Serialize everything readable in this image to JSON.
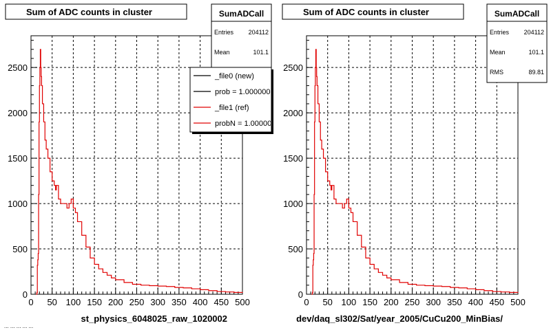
{
  "colors": {
    "ref": "#e00000",
    "new": "#000000",
    "grid": "#000000",
    "background": "#ffffff"
  },
  "footer_text": "... ... ... ... ...",
  "chart_data": [
    {
      "type": "line",
      "title": "Sum of ADC counts in cluster",
      "xlabel": "st_physics_6048025_raw_1020002",
      "ylabel": "",
      "xlim": [
        0,
        500
      ],
      "ylim": [
        0,
        2850
      ],
      "xticks": [
        "0",
        "50",
        "100",
        "150",
        "200",
        "250",
        "300",
        "350",
        "400",
        "450",
        "500"
      ],
      "yticks": [
        "0",
        "500",
        "1000",
        "1500",
        "2000",
        "2500"
      ],
      "grid": true,
      "stats": {
        "name": "SumADCall",
        "entries_label": "Entries",
        "entries": "204112",
        "mean_label": "Mean",
        "mean": "101.1"
      },
      "legend": {
        "placement": "top-right",
        "entries": [
          {
            "label": "_file0 (new)",
            "color": "#000000"
          },
          {
            "label": "prob = 1.000000",
            "color": "#000000"
          },
          {
            "label": "_file1 (ref)",
            "color": "#e00000"
          },
          {
            "label": "probN = 1.000000",
            "color": "#e00000"
          }
        ]
      },
      "series": [
        {
          "color": "#e00000",
          "x": [
            12,
            14,
            15,
            16,
            17,
            18,
            19,
            20,
            21,
            22,
            23,
            24,
            25,
            27,
            30,
            33,
            36,
            40,
            45,
            50,
            55,
            58,
            60,
            65,
            70,
            75,
            80,
            85,
            90,
            95,
            100,
            105,
            110,
            120,
            130,
            140,
            150,
            160,
            170,
            180,
            190,
            200,
            220,
            240,
            260,
            280,
            300,
            320,
            340,
            360,
            380,
            400,
            420,
            440,
            460,
            480,
            500
          ],
          "y": [
            0,
            20,
            320,
            380,
            450,
            1100,
            1900,
            2300,
            2500,
            2700,
            2500,
            2400,
            2300,
            2100,
            1900,
            1700,
            1600,
            1500,
            1350,
            1250,
            1200,
            1150,
            1200,
            1050,
            1000,
            1000,
            1000,
            950,
            1000,
            1050,
            950,
            900,
            800,
            650,
            520,
            400,
            330,
            280,
            240,
            210,
            180,
            160,
            130,
            110,
            100,
            95,
            90,
            85,
            75,
            70,
            60,
            50,
            40,
            30,
            25,
            20,
            15
          ]
        }
      ]
    },
    {
      "type": "line",
      "title": "Sum of ADC counts in cluster",
      "xlabel": "dev/daq_sl302/Sat/year_2005/CuCu200_MinBias/",
      "ylabel": "",
      "xlim": [
        0,
        500
      ],
      "ylim": [
        0,
        2850
      ],
      "xticks": [
        "0",
        "50",
        "100",
        "150",
        "200",
        "250",
        "300",
        "350",
        "400",
        "450",
        "500"
      ],
      "yticks": [
        "0",
        "500",
        "1000",
        "1500",
        "2000",
        "2500"
      ],
      "grid": true,
      "stats": {
        "name": "SumADCall",
        "entries_label": "Entries",
        "entries": "204112",
        "mean_label": "Mean",
        "mean": "101.1",
        "rms_label": "RMS",
        "rms": "89.81"
      },
      "series": [
        {
          "color": "#e00000",
          "x": [
            12,
            14,
            15,
            16,
            17,
            18,
            19,
            20,
            21,
            22,
            23,
            24,
            25,
            27,
            30,
            33,
            36,
            40,
            45,
            50,
            55,
            58,
            60,
            65,
            70,
            75,
            80,
            85,
            90,
            95,
            100,
            105,
            110,
            120,
            130,
            140,
            150,
            160,
            170,
            180,
            190,
            200,
            220,
            240,
            260,
            280,
            300,
            320,
            340,
            360,
            380,
            400,
            420,
            440,
            460,
            480,
            500
          ],
          "y": [
            0,
            20,
            320,
            380,
            450,
            1100,
            1900,
            2300,
            2500,
            2700,
            2500,
            2400,
            2300,
            2100,
            1900,
            1700,
            1600,
            1500,
            1350,
            1250,
            1200,
            1150,
            1200,
            1050,
            1000,
            1000,
            1000,
            950,
            1000,
            1050,
            950,
            900,
            800,
            650,
            520,
            400,
            330,
            280,
            240,
            210,
            180,
            160,
            130,
            110,
            100,
            95,
            90,
            85,
            75,
            70,
            60,
            50,
            40,
            30,
            25,
            20,
            15
          ]
        }
      ]
    }
  ]
}
